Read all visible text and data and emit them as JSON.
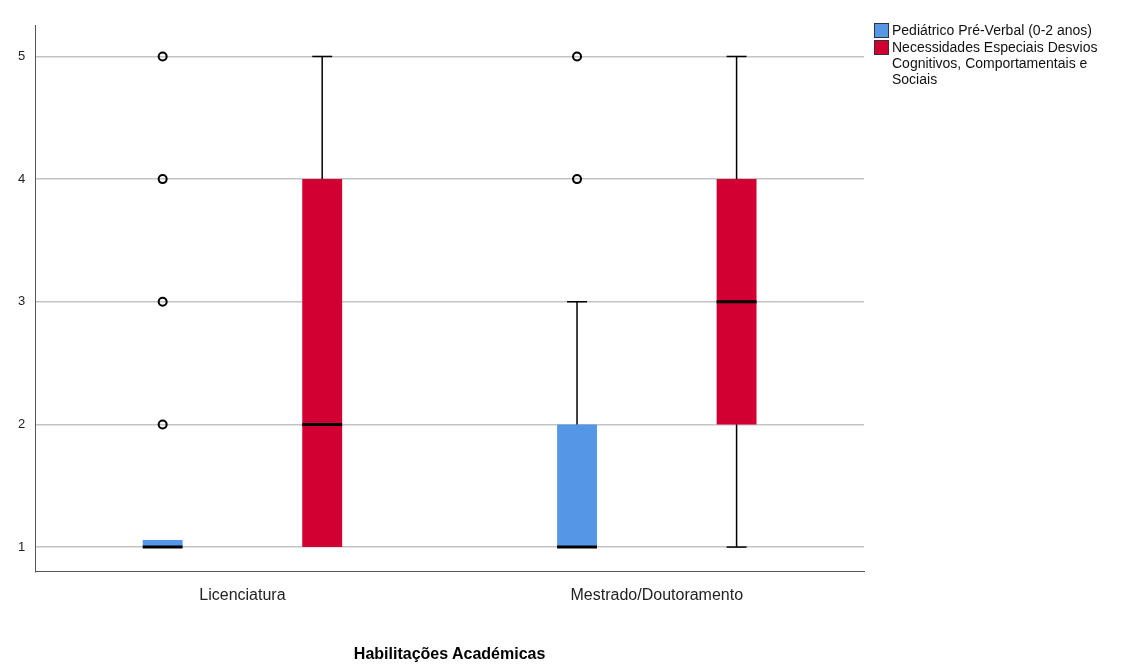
{
  "chart_data": {
    "type": "box",
    "xlabel": "Habilitações Académicas",
    "categories": [
      "Licenciatura",
      "Mestrado/Doutoramento"
    ],
    "series": [
      {
        "name": "Pediátrico Pré-Verbal (0-2 anos)",
        "color": "#5596e6",
        "boxes": [
          {
            "low": 1,
            "q1": 1,
            "median": 1,
            "q3": 1,
            "high": 1,
            "outliers": [
              2,
              3,
              4,
              5
            ]
          },
          {
            "low": 1,
            "q1": 1,
            "median": 1,
            "q3": 2,
            "high": 3,
            "outliers": [
              4,
              5
            ]
          }
        ]
      },
      {
        "name": "Necessidades Especiais Desvios Cognitivos, Comportamentais e Sociais",
        "color": "#d20032",
        "boxes": [
          {
            "low": 1,
            "q1": 1,
            "median": 2,
            "q3": 4,
            "high": 5
          },
          {
            "low": 1,
            "q1": 2,
            "median": 3,
            "q3": 4,
            "high": 5
          }
        ]
      }
    ],
    "ylim": [
      0.8,
      5.25
    ],
    "yticks": [
      1,
      2,
      3,
      4,
      5
    ],
    "grid": "y",
    "legend": "top right"
  }
}
